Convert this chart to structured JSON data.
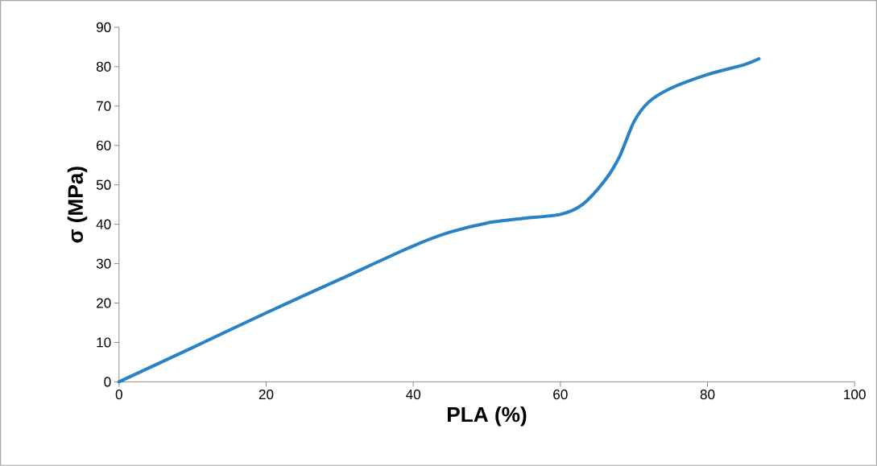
{
  "chart_data": {
    "type": "line",
    "xlabel": "PLA (%)",
    "ylabel": "σ (MPa)",
    "x": [
      0,
      10,
      20,
      30,
      40,
      45,
      50,
      55,
      60,
      63,
      66,
      68,
      70,
      72,
      75,
      80,
      85,
      87
    ],
    "series": [
      {
        "color": "#2a82c6",
        "values": [
          0,
          8.7,
          17.5,
          26,
          34.5,
          38,
          40.3,
          41.5,
          42.5,
          45,
          51,
          57,
          66,
          71,
          74.5,
          78,
          80.5,
          82
        ]
      }
    ],
    "xlim": [
      0,
      100
    ],
    "ylim": [
      0,
      90
    ],
    "xticks": [
      0,
      20,
      40,
      60,
      80,
      100
    ],
    "yticks": [
      0,
      10,
      20,
      30,
      40,
      50,
      60,
      70,
      80,
      90
    ],
    "line_style": "solid"
  }
}
